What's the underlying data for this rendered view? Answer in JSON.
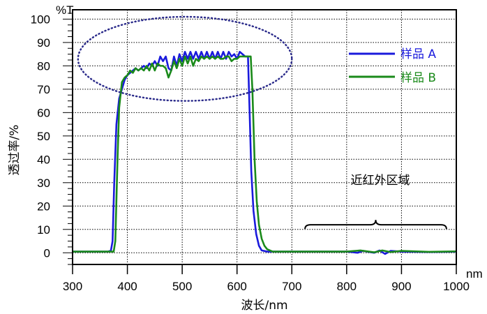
{
  "chart_data": {
    "type": "line",
    "title": "",
    "xlabel": "波长/nm",
    "ylabel": "透过率/%",
    "x_unit": "nm",
    "y_unit": "%T",
    "xlim": [
      300,
      1000
    ],
    "ylim": [
      -5,
      104
    ],
    "xticks": [
      300,
      400,
      500,
      600,
      700,
      800,
      900,
      1000
    ],
    "yticks": [
      0,
      10,
      20,
      30,
      40,
      50,
      60,
      70,
      80,
      90,
      100
    ],
    "grid": true,
    "legend_position": "top-right",
    "series": [
      {
        "name": "样品 A",
        "color": "#1a1adc",
        "points": [
          [
            300,
            0.5
          ],
          [
            365,
            0.5
          ],
          [
            370,
            1
          ],
          [
            373,
            5
          ],
          [
            376,
            30
          ],
          [
            380,
            55
          ],
          [
            385,
            66
          ],
          [
            390,
            70
          ],
          [
            395,
            74
          ],
          [
            400,
            76
          ],
          [
            405,
            77
          ],
          [
            410,
            78
          ],
          [
            415,
            79
          ],
          [
            420,
            78
          ],
          [
            425,
            79
          ],
          [
            430,
            80
          ],
          [
            435,
            79
          ],
          [
            440,
            81
          ],
          [
            445,
            80
          ],
          [
            450,
            82
          ],
          [
            455,
            80
          ],
          [
            460,
            84
          ],
          [
            465,
            82
          ],
          [
            470,
            84
          ],
          [
            475,
            79
          ],
          [
            480,
            78
          ],
          [
            485,
            84
          ],
          [
            490,
            80
          ],
          [
            495,
            85
          ],
          [
            500,
            82
          ],
          [
            505,
            86
          ],
          [
            510,
            83
          ],
          [
            515,
            86
          ],
          [
            520,
            83
          ],
          [
            525,
            86
          ],
          [
            530,
            83
          ],
          [
            535,
            86
          ],
          [
            540,
            83
          ],
          [
            545,
            86
          ],
          [
            550,
            83
          ],
          [
            555,
            86
          ],
          [
            560,
            83
          ],
          [
            565,
            86
          ],
          [
            570,
            83
          ],
          [
            575,
            86
          ],
          [
            580,
            83
          ],
          [
            585,
            86
          ],
          [
            590,
            84
          ],
          [
            595,
            85
          ],
          [
            600,
            83
          ],
          [
            605,
            86
          ],
          [
            610,
            85
          ],
          [
            615,
            84
          ],
          [
            620,
            84
          ],
          [
            623,
            60
          ],
          [
            626,
            35
          ],
          [
            630,
            18
          ],
          [
            635,
            8
          ],
          [
            640,
            3
          ],
          [
            645,
            1
          ],
          [
            655,
            0.5
          ],
          [
            700,
            0.5
          ],
          [
            800,
            0.5
          ],
          [
            820,
            0
          ],
          [
            830,
            0.8
          ],
          [
            850,
            0
          ],
          [
            860,
            1
          ],
          [
            870,
            -0.5
          ],
          [
            880,
            0.8
          ],
          [
            900,
            0.5
          ],
          [
            950,
            0.3
          ],
          [
            1000,
            0.5
          ]
        ]
      },
      {
        "name": "样品 B",
        "color": "#1a8a1a",
        "points": [
          [
            300,
            0.5
          ],
          [
            375,
            0.5
          ],
          [
            378,
            5
          ],
          [
            382,
            40
          ],
          [
            385,
            62
          ],
          [
            390,
            73
          ],
          [
            395,
            75
          ],
          [
            400,
            76
          ],
          [
            405,
            78
          ],
          [
            410,
            77
          ],
          [
            415,
            79
          ],
          [
            420,
            78
          ],
          [
            425,
            79
          ],
          [
            430,
            78
          ],
          [
            435,
            80
          ],
          [
            440,
            78
          ],
          [
            445,
            81
          ],
          [
            450,
            78
          ],
          [
            455,
            81
          ],
          [
            460,
            80
          ],
          [
            465,
            80
          ],
          [
            470,
            79
          ],
          [
            475,
            75
          ],
          [
            480,
            78
          ],
          [
            485,
            82
          ],
          [
            490,
            79
          ],
          [
            495,
            83
          ],
          [
            500,
            80
          ],
          [
            505,
            84
          ],
          [
            510,
            81
          ],
          [
            515,
            84
          ],
          [
            520,
            80
          ],
          [
            525,
            83
          ],
          [
            530,
            82
          ],
          [
            535,
            84
          ],
          [
            540,
            83
          ],
          [
            545,
            84
          ],
          [
            550,
            83
          ],
          [
            555,
            84
          ],
          [
            560,
            83
          ],
          [
            565,
            84
          ],
          [
            570,
            83
          ],
          [
            575,
            83
          ],
          [
            580,
            84
          ],
          [
            585,
            84
          ],
          [
            590,
            82
          ],
          [
            595,
            83
          ],
          [
            600,
            83
          ],
          [
            605,
            84
          ],
          [
            610,
            84
          ],
          [
            615,
            84
          ],
          [
            620,
            84
          ],
          [
            625,
            84
          ],
          [
            628,
            70
          ],
          [
            632,
            40
          ],
          [
            636,
            22
          ],
          [
            640,
            12
          ],
          [
            645,
            6
          ],
          [
            650,
            3
          ],
          [
            655,
            1.5
          ],
          [
            665,
            0.5
          ],
          [
            800,
            0.5
          ],
          [
            825,
            1
          ],
          [
            850,
            0.2
          ],
          [
            865,
            1
          ],
          [
            880,
            0.3
          ],
          [
            900,
            0.8
          ],
          [
            950,
            0.4
          ],
          [
            1000,
            0.6
          ]
        ]
      }
    ],
    "annotations": [
      {
        "type": "ellipse",
        "center": [
          505,
          83
        ],
        "x_range": [
          310,
          700
        ],
        "y_range": [
          65,
          101
        ],
        "color": "#2a2a8a"
      },
      {
        "type": "brace",
        "x_range": [
          724,
          982
        ],
        "y": 12,
        "label": "近红外区域"
      }
    ]
  }
}
